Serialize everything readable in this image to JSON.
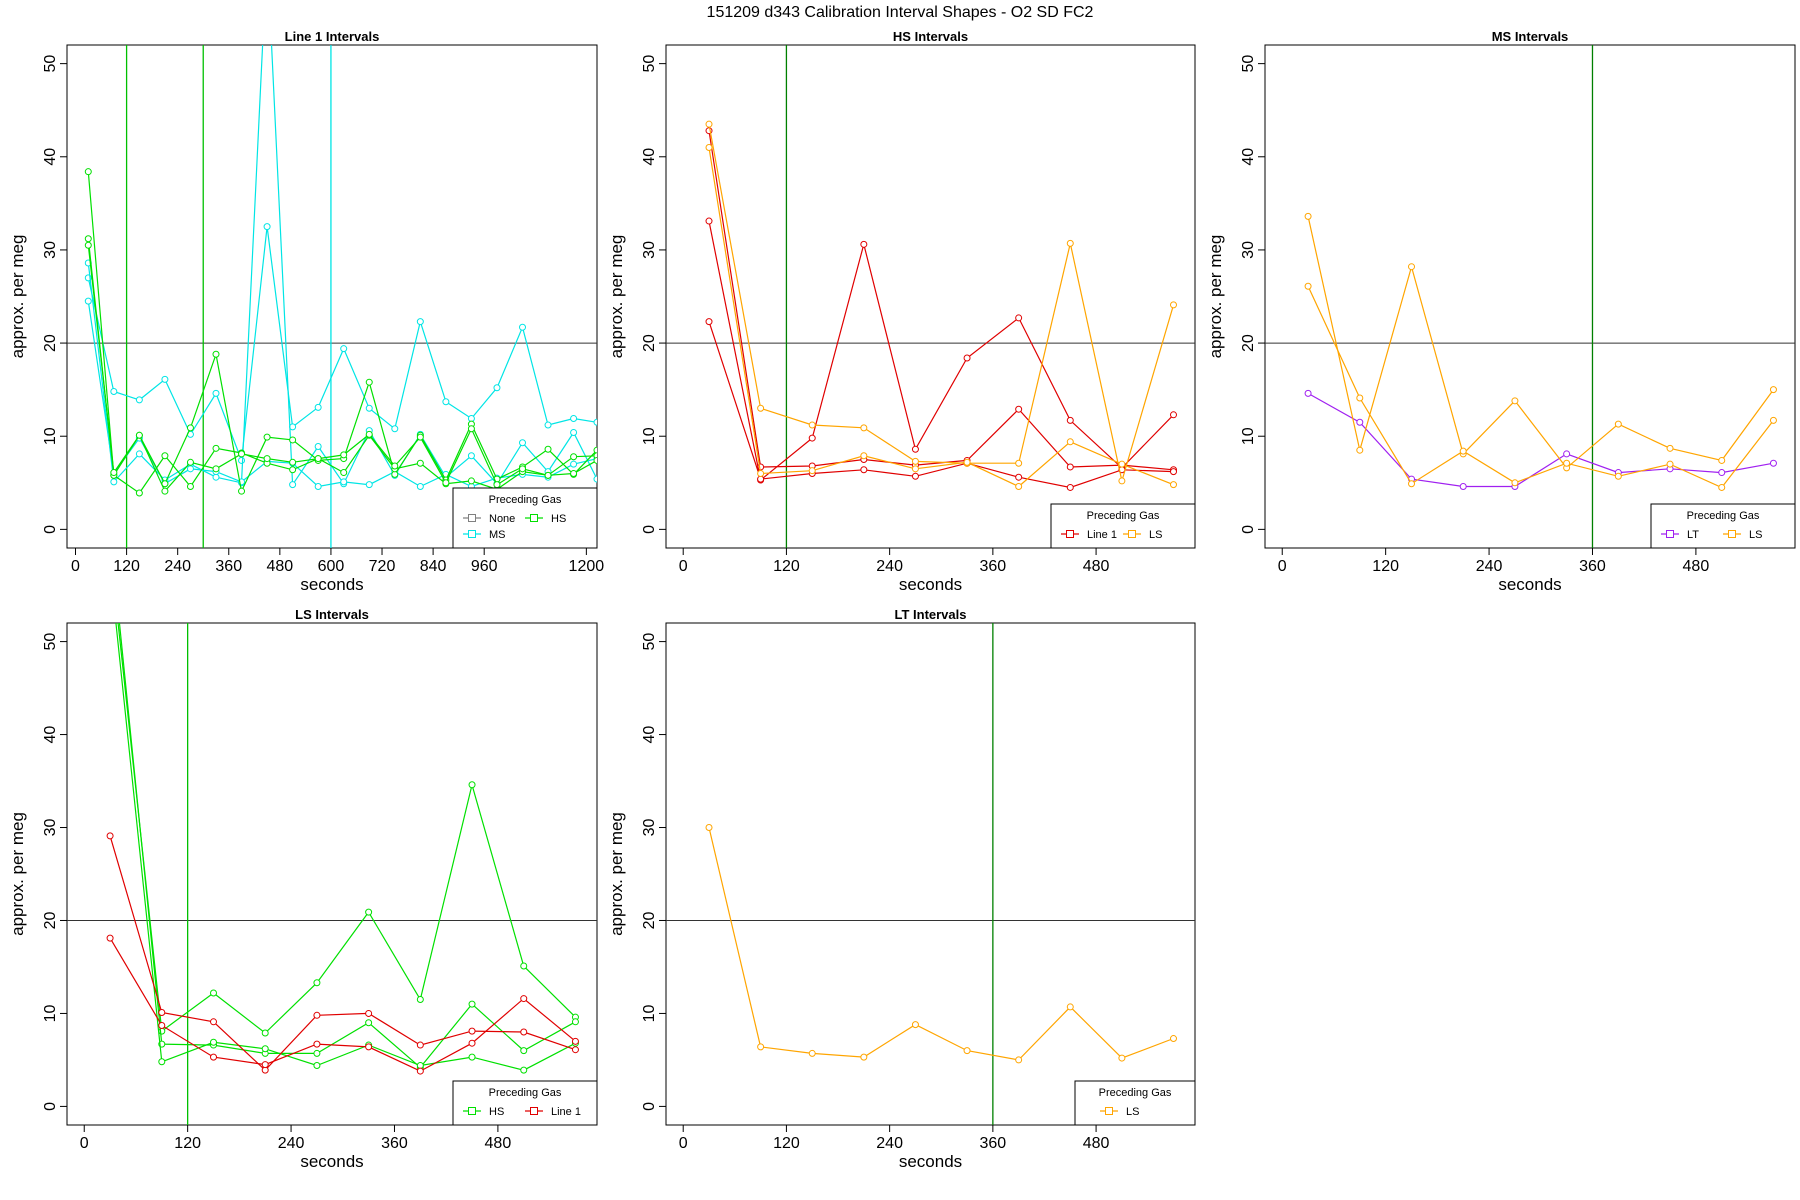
{
  "title": "151209   d343   Calibration Interval Shapes - O2 SD FC2",
  "chart_data": [
    {
      "type": "line",
      "title": "Line 1 Intervals",
      "xlabel": "seconds",
      "ylabel": "approx. per meg",
      "xlim": [
        -20,
        1225
      ],
      "ylim": [
        -2,
        52
      ],
      "xticks": [
        0,
        120,
        240,
        360,
        480,
        600,
        720,
        840,
        960,
        1200
      ],
      "yticks": [
        0,
        10,
        20,
        30,
        40,
        50
      ],
      "hline": 20,
      "vlines": [
        {
          "x": 120,
          "color": "#00c000"
        },
        {
          "x": 300,
          "color": "#00c000"
        },
        {
          "x": 600,
          "color": "#00e5e5"
        }
      ],
      "legend": {
        "title": "Preceding Gas",
        "position": "bottom-right",
        "columns": 2,
        "entries": [
          {
            "name": "None",
            "color": "#808080"
          },
          {
            "name": "HS",
            "color": "#00e000"
          },
          {
            "name": "MS",
            "color": "#00e5e5"
          }
        ]
      },
      "series": [
        {
          "name": "MS",
          "color": "#00e5e5",
          "x": [
            30,
            90,
            150,
            210,
            270,
            330,
            390,
            450,
            510,
            570,
            630,
            690,
            750,
            810,
            870,
            930,
            990,
            1050,
            1110,
            1170,
            1225
          ],
          "values": [
            27,
            14.8,
            13.9,
            16.1,
            10.2,
            14.6,
            7.4,
            32.5,
            11,
            13.1,
            19.4,
            13,
            10.8,
            22.3,
            13.7,
            11.9,
            15.2,
            21.7,
            11.2,
            11.9,
            11.5
          ]
        },
        {
          "name": "MS",
          "color": "#00e5e5",
          "x": [
            30,
            90,
            150,
            210,
            270,
            330,
            390,
            450,
            510,
            570,
            630,
            690,
            750,
            810,
            870,
            930,
            990,
            1050,
            1110,
            1170,
            1225
          ],
          "values": [
            28.6,
            5.1,
            8.1,
            5.3,
            7,
            5.6,
            5,
            62,
            4.8,
            8.9,
            4.9,
            10.6,
            5.8,
            10.2,
            5.6,
            7.9,
            4.9,
            9.3,
            6.2,
            10.4,
            5.4
          ]
        },
        {
          "name": "MS",
          "color": "#00e5e5",
          "x": [
            30,
            90,
            150,
            210,
            270,
            330,
            390,
            450,
            510,
            570,
            630,
            690,
            750,
            810,
            870,
            930,
            990,
            1050,
            1110,
            1170,
            1225
          ],
          "values": [
            24.5,
            6,
            9.8,
            4.9,
            6.5,
            6.2,
            5.1,
            7.3,
            7.1,
            4.6,
            5.1,
            4.8,
            6.2,
            4.6,
            5.9,
            4.6,
            5.5,
            5.9,
            5.6,
            7,
            7.6
          ]
        },
        {
          "name": "HS",
          "color": "#00e000",
          "x": [
            30,
            90,
            150,
            210,
            270,
            330,
            390,
            450,
            510,
            570,
            630,
            690,
            750,
            810,
            870,
            930,
            990,
            1050,
            1110,
            1170,
            1225
          ],
          "values": [
            38.4,
            5.8,
            10.1,
            4.9,
            10.9,
            18.8,
            4.1,
            9.9,
            9.6,
            7.4,
            7.6,
            15.8,
            5.9,
            10.1,
            5.3,
            11.3,
            5.4,
            6.7,
            8.6,
            5.9,
            8.5
          ]
        },
        {
          "name": "HS",
          "color": "#00e000",
          "x": [
            30,
            90,
            150,
            210,
            270,
            330,
            390,
            450,
            510,
            570,
            630,
            690,
            750,
            810,
            870,
            930,
            990,
            1050,
            1110,
            1170,
            1225
          ],
          "values": [
            31.2,
            5.8,
            3.9,
            7.9,
            4.6,
            8.7,
            8.2,
            7.1,
            6.4,
            7.6,
            6.1,
            10.1,
            6.5,
            7.1,
            4.9,
            5.2,
            4.3,
            6.2,
            5.8,
            7.8,
            7.9
          ]
        },
        {
          "name": "HS",
          "color": "#00e000",
          "x": [
            30,
            90,
            150,
            210,
            270,
            330,
            390,
            450,
            510,
            570,
            630,
            690,
            750,
            810,
            870,
            930,
            990,
            1050,
            1110,
            1170,
            1225
          ],
          "values": [
            30.5,
            6.1,
            10.1,
            4.1,
            7.2,
            6.5,
            8.1,
            7.6,
            7.2,
            7.6,
            8,
            10.2,
            6.8,
            9.9,
            5,
            10.8,
            4.8,
            6.5,
            5.8,
            6,
            7.4
          ]
        }
      ]
    },
    {
      "type": "line",
      "title": "HS Intervals",
      "xlabel": "seconds",
      "ylabel": "approx. per meg",
      "xlim": [
        -20,
        595
      ],
      "ylim": [
        -2,
        52
      ],
      "xticks": [
        0,
        120,
        240,
        360,
        480
      ],
      "yticks": [
        0,
        10,
        20,
        30,
        40,
        50
      ],
      "hline": 20,
      "vlines": [
        {
          "x": 120,
          "color": "#008000"
        }
      ],
      "legend": {
        "title": "Preceding Gas",
        "position": "bottom-right",
        "columns": 2,
        "entries": [
          {
            "name": "Line 1",
            "color": "#e00000"
          },
          {
            "name": "LS",
            "color": "#ffa500"
          }
        ]
      },
      "series": [
        {
          "name": "Line 1",
          "color": "#e00000",
          "x": [
            30,
            90,
            150,
            210,
            270,
            330,
            390,
            450,
            510,
            570
          ],
          "values": [
            42.8,
            6.7,
            6.8,
            7.5,
            6.9,
            7.4,
            12.9,
            6.7,
            6.9,
            6.4
          ]
        },
        {
          "name": "Line 1",
          "color": "#e00000",
          "x": [
            30,
            90,
            150,
            210,
            270,
            330,
            390,
            450,
            510,
            570
          ],
          "values": [
            33.1,
            5.3,
            9.8,
            30.6,
            8.6,
            18.4,
            22.7,
            11.7,
            6.6,
            12.3
          ]
        },
        {
          "name": "Line 1",
          "color": "#e00000",
          "x": [
            30,
            90,
            150,
            210,
            270,
            330,
            390,
            450,
            510,
            570
          ],
          "values": [
            22.3,
            5.4,
            6,
            6.4,
            5.7,
            7.1,
            5.6,
            4.5,
            6.4,
            6.2
          ]
        },
        {
          "name": "LS",
          "color": "#ffa500",
          "x": [
            30,
            90,
            150,
            210,
            270,
            330,
            390,
            450,
            510,
            570
          ],
          "values": [
            43.5,
            13,
            11.2,
            10.9,
            7.3,
            7.1,
            7.1,
            30.7,
            5.2,
            24.1
          ]
        },
        {
          "name": "LS",
          "color": "#ffa500",
          "x": [
            30,
            90,
            150,
            210,
            270,
            330,
            390,
            450,
            510,
            570
          ],
          "values": [
            41,
            6,
            6.3,
            7.9,
            6.5,
            7.2,
            4.6,
            9.4,
            7,
            4.8
          ]
        }
      ]
    },
    {
      "type": "line",
      "title": "MS Intervals",
      "xlabel": "seconds",
      "ylabel": "approx. per meg",
      "xlim": [
        -20,
        595
      ],
      "ylim": [
        -2,
        52
      ],
      "xticks": [
        0,
        120,
        240,
        360,
        480
      ],
      "yticks": [
        0,
        10,
        20,
        30,
        40,
        50
      ],
      "hline": 20,
      "vlines": [
        {
          "x": 360,
          "color": "#008000"
        }
      ],
      "legend": {
        "title": "Preceding Gas",
        "position": "bottom-right",
        "columns": 2,
        "entries": [
          {
            "name": "LT",
            "color": "#a020f0"
          },
          {
            "name": "LS",
            "color": "#ffa500"
          }
        ]
      },
      "series": [
        {
          "name": "LT",
          "color": "#a020f0",
          "x": [
            30,
            90,
            150,
            210,
            270,
            330,
            390,
            450,
            510,
            570
          ],
          "values": [
            14.6,
            11.5,
            5.4,
            4.6,
            4.6,
            8.1,
            6.1,
            6.5,
            6.1,
            7.1
          ]
        },
        {
          "name": "LS",
          "color": "#ffa500",
          "x": [
            30,
            90,
            150,
            210,
            270,
            330,
            390,
            450,
            510,
            570
          ],
          "values": [
            33.6,
            8.5,
            28.2,
            8.1,
            13.8,
            6.6,
            11.3,
            8.7,
            7.4,
            15
          ]
        },
        {
          "name": "LS",
          "color": "#ffa500",
          "x": [
            30,
            90,
            150,
            210,
            270,
            330,
            390,
            450,
            510,
            570
          ],
          "values": [
            26.1,
            14.1,
            4.9,
            8.4,
            5,
            7.1,
            5.7,
            7,
            4.5,
            11.7
          ]
        }
      ]
    },
    {
      "type": "line",
      "title": "LS Intervals",
      "xlabel": "seconds",
      "ylabel": "approx. per meg",
      "xlim": [
        -20,
        595
      ],
      "ylim": [
        -2,
        52
      ],
      "xticks": [
        0,
        120,
        240,
        360,
        480
      ],
      "yticks": [
        0,
        10,
        20,
        30,
        40,
        50
      ],
      "hline": 20,
      "vlines": [
        {
          "x": 120,
          "color": "#00c000"
        }
      ],
      "legend": {
        "title": "Preceding Gas",
        "position": "bottom-right",
        "columns": 2,
        "entries": [
          {
            "name": "HS",
            "color": "#00e000"
          },
          {
            "name": "Line 1",
            "color": "#e00000"
          }
        ]
      },
      "series": [
        {
          "name": "HS",
          "color": "#00e000",
          "x": [
            30,
            90,
            150,
            210,
            270,
            330,
            390,
            450,
            510,
            570
          ],
          "values": [
            60,
            8.1,
            12.2,
            7.9,
            13.3,
            20.9,
            11.5,
            34.6,
            15.1,
            9.6
          ]
        },
        {
          "name": "HS",
          "color": "#00e000",
          "x": [
            30,
            90,
            150,
            210,
            270,
            330,
            390,
            450,
            510,
            570
          ],
          "values": [
            62,
            6.7,
            6.6,
            5.7,
            5.7,
            9,
            4.2,
            11,
            6,
            9.1
          ]
        },
        {
          "name": "HS",
          "color": "#00e000",
          "x": [
            30,
            90,
            150,
            210,
            270,
            330,
            390,
            450,
            510,
            570
          ],
          "values": [
            58,
            4.8,
            6.9,
            6.2,
            4.4,
            6.6,
            4.4,
            5.3,
            3.9,
            6.8
          ]
        },
        {
          "name": "Line 1",
          "color": "#e00000",
          "x": [
            30,
            90,
            150,
            210,
            270,
            330,
            390,
            450,
            510,
            570
          ],
          "values": [
            29.1,
            10.1,
            9.1,
            3.9,
            9.8,
            10,
            6.6,
            8.1,
            8,
            6.1
          ]
        },
        {
          "name": "Line 1",
          "color": "#e00000",
          "x": [
            30,
            90,
            150,
            210,
            270,
            330,
            390,
            450,
            510,
            570
          ],
          "values": [
            18.1,
            8.7,
            5.3,
            4.5,
            6.7,
            6.4,
            3.8,
            6.8,
            11.6,
            7
          ]
        }
      ]
    },
    {
      "type": "line",
      "title": "LT Intervals",
      "xlabel": "seconds",
      "ylabel": "approx. per meg",
      "xlim": [
        -20,
        595
      ],
      "ylim": [
        -2,
        52
      ],
      "xticks": [
        0,
        120,
        240,
        360,
        480
      ],
      "yticks": [
        0,
        10,
        20,
        30,
        40,
        50
      ],
      "hline": 20,
      "vlines": [
        {
          "x": 360,
          "color": "#008000"
        }
      ],
      "legend": {
        "title": "Preceding Gas",
        "position": "bottom-right",
        "columns": 1,
        "entries": [
          {
            "name": "LS",
            "color": "#ffa500"
          }
        ]
      },
      "series": [
        {
          "name": "LS",
          "color": "#ffa500",
          "x": [
            30,
            90,
            150,
            210,
            270,
            330,
            390,
            450,
            510,
            570
          ],
          "values": [
            30,
            6.4,
            5.7,
            5.3,
            8.8,
            6,
            5,
            10.7,
            5.2,
            7.3
          ]
        }
      ]
    }
  ]
}
